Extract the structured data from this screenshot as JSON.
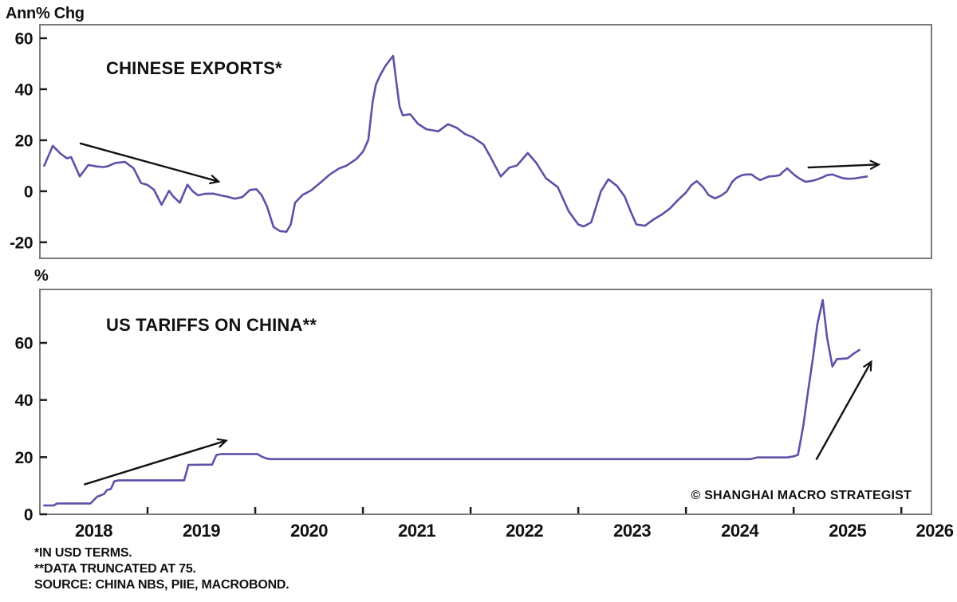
{
  "watermark": "© SHANGHAI MACRO STRATEGIST",
  "footnotes": [
    "*IN USD TERMS.",
    "**DATA TRUNCATED AT 75.",
    "SOURCE: CHINA NBS, PIIE, MACROBOND."
  ],
  "colors": {
    "line": "#5c52a6",
    "axis_frame": "#7a7a7a",
    "tick": "#1a1a1a",
    "text": "#111111",
    "arrow": "#111111",
    "background": "#ffffff"
  },
  "x_axis": {
    "range": [
      2018.0,
      2026.28
    ],
    "tick_years": [
      2019,
      2020,
      2021,
      2022,
      2023,
      2024,
      2025,
      2026
    ],
    "labels": [
      "2018",
      "2019",
      "2020",
      "2021",
      "2022",
      "2023",
      "2024",
      "2025",
      "2026"
    ]
  },
  "chart_data": [
    {
      "type": "line",
      "panel": "top",
      "title": "CHINESE EXPORTS*",
      "y_axis_label": "Ann% Chg",
      "yticks": [
        60,
        40,
        20,
        0,
        -20
      ],
      "ylim": [
        -26.3,
        65.3
      ],
      "grid": false,
      "series": [
        {
          "name": "Chinese exports, annual % change",
          "points": [
            [
              2018.04,
              10.0
            ],
            [
              2018.12,
              17.8
            ],
            [
              2018.19,
              14.8
            ],
            [
              2018.25,
              12.9
            ],
            [
              2018.29,
              13.4
            ],
            [
              2018.37,
              5.8
            ],
            [
              2018.45,
              10.3
            ],
            [
              2018.53,
              9.7
            ],
            [
              2018.59,
              9.5
            ],
            [
              2018.63,
              9.8
            ],
            [
              2018.7,
              11.1
            ],
            [
              2018.79,
              11.5
            ],
            [
              2018.87,
              9.0
            ],
            [
              2018.94,
              3.2
            ],
            [
              2019.0,
              2.5
            ],
            [
              2019.06,
              0.6
            ],
            [
              2019.13,
              -5.3
            ],
            [
              2019.2,
              0.2
            ],
            [
              2019.24,
              -2.1
            ],
            [
              2019.3,
              -4.5
            ],
            [
              2019.37,
              2.6
            ],
            [
              2019.42,
              0.0
            ],
            [
              2019.47,
              -1.6
            ],
            [
              2019.53,
              -1.0
            ],
            [
              2019.61,
              -0.9
            ],
            [
              2019.68,
              -1.6
            ],
            [
              2019.74,
              -2.1
            ],
            [
              2019.81,
              -2.9
            ],
            [
              2019.88,
              -2.3
            ],
            [
              2019.95,
              0.5
            ],
            [
              2020.01,
              0.8
            ],
            [
              2020.06,
              -1.5
            ],
            [
              2020.11,
              -6.0
            ],
            [
              2020.17,
              -14.0
            ],
            [
              2020.23,
              -15.6
            ],
            [
              2020.29,
              -15.9
            ],
            [
              2020.33,
              -13.0
            ],
            [
              2020.37,
              -4.5
            ],
            [
              2020.44,
              -1.4
            ],
            [
              2020.52,
              0.4
            ],
            [
              2020.6,
              3.2
            ],
            [
              2020.69,
              6.5
            ],
            [
              2020.78,
              9.0
            ],
            [
              2020.85,
              10.1
            ],
            [
              2020.94,
              12.7
            ],
            [
              2021.0,
              15.5
            ],
            [
              2021.05,
              20.1
            ],
            [
              2021.09,
              34.9
            ],
            [
              2021.12,
              41.8
            ],
            [
              2021.16,
              45.5
            ],
            [
              2021.21,
              49.2
            ],
            [
              2021.28,
              53.1
            ],
            [
              2021.31,
              43.0
            ],
            [
              2021.34,
              33.3
            ],
            [
              2021.37,
              29.8
            ],
            [
              2021.44,
              30.2
            ],
            [
              2021.51,
              26.5
            ],
            [
              2021.59,
              24.3
            ],
            [
              2021.7,
              23.5
            ],
            [
              2021.79,
              26.3
            ],
            [
              2021.87,
              24.9
            ],
            [
              2021.95,
              22.4
            ],
            [
              2022.02,
              21.2
            ],
            [
              2022.12,
              18.3
            ],
            [
              2022.18,
              13.8
            ],
            [
              2022.28,
              5.8
            ],
            [
              2022.36,
              9.3
            ],
            [
              2022.43,
              10.1
            ],
            [
              2022.53,
              15.0
            ],
            [
              2022.61,
              11.1
            ],
            [
              2022.7,
              5.1
            ],
            [
              2022.81,
              1.6
            ],
            [
              2022.91,
              -7.8
            ],
            [
              2023.0,
              -13.0
            ],
            [
              2023.05,
              -13.8
            ],
            [
              2023.12,
              -12.2
            ],
            [
              2023.21,
              0.0
            ],
            [
              2023.28,
              4.7
            ],
            [
              2023.36,
              2.1
            ],
            [
              2023.43,
              -2.0
            ],
            [
              2023.49,
              -8.3
            ],
            [
              2023.54,
              -13.0
            ],
            [
              2023.62,
              -13.5
            ],
            [
              2023.7,
              -11.0
            ],
            [
              2023.78,
              -9.0
            ],
            [
              2023.85,
              -6.8
            ],
            [
              2023.92,
              -3.7
            ],
            [
              2024.0,
              -0.5
            ],
            [
              2024.05,
              2.4
            ],
            [
              2024.1,
              4.0
            ],
            [
              2024.16,
              1.6
            ],
            [
              2024.21,
              -1.5
            ],
            [
              2024.27,
              -2.8
            ],
            [
              2024.33,
              -1.6
            ],
            [
              2024.38,
              0.0
            ],
            [
              2024.43,
              3.7
            ],
            [
              2024.47,
              5.3
            ],
            [
              2024.52,
              6.3
            ],
            [
              2024.56,
              6.6
            ],
            [
              2024.61,
              6.6
            ],
            [
              2024.65,
              5.3
            ],
            [
              2024.69,
              4.4
            ],
            [
              2024.73,
              5.1
            ],
            [
              2024.77,
              5.8
            ],
            [
              2024.83,
              6.0
            ],
            [
              2024.87,
              6.3
            ],
            [
              2024.9,
              7.6
            ],
            [
              2024.94,
              9.0
            ],
            [
              2024.98,
              7.4
            ],
            [
              2025.01,
              6.3
            ],
            [
              2025.05,
              5.1
            ],
            [
              2025.11,
              3.7
            ],
            [
              2025.16,
              4.0
            ],
            [
              2025.2,
              4.4
            ],
            [
              2025.26,
              5.3
            ],
            [
              2025.31,
              6.3
            ],
            [
              2025.36,
              6.6
            ],
            [
              2025.41,
              5.8
            ],
            [
              2025.46,
              5.1
            ],
            [
              2025.5,
              4.9
            ],
            [
              2025.56,
              5.0
            ],
            [
              2025.61,
              5.3
            ],
            [
              2025.65,
              5.6
            ],
            [
              2025.68,
              5.8
            ]
          ]
        }
      ],
      "arrows": [
        {
          "from": [
            2018.37,
            18.8
          ],
          "to": [
            2019.66,
            3.8
          ]
        },
        {
          "from": [
            2025.13,
            9.3
          ],
          "to": [
            2025.79,
            10.5
          ]
        }
      ]
    },
    {
      "type": "line",
      "panel": "bottom",
      "title": "US TARIFFS ON CHINA**",
      "y_axis_label": "%",
      "yticks": [
        60,
        40,
        20,
        0
      ],
      "ylim": [
        0,
        78.7
      ],
      "grid": false,
      "series": [
        {
          "name": "US tariffs on China, %",
          "points": [
            [
              2018.04,
              3.1
            ],
            [
              2018.13,
              3.1
            ],
            [
              2018.16,
              3.8
            ],
            [
              2018.47,
              3.8
            ],
            [
              2018.53,
              6.1
            ],
            [
              2018.57,
              6.7
            ],
            [
              2018.6,
              7.2
            ],
            [
              2018.62,
              8.4
            ],
            [
              2018.66,
              8.9
            ],
            [
              2018.69,
              11.5
            ],
            [
              2018.73,
              11.9
            ],
            [
              2019.34,
              11.9
            ],
            [
              2019.38,
              17.3
            ],
            [
              2019.6,
              17.4
            ],
            [
              2019.64,
              20.8
            ],
            [
              2019.69,
              21.1
            ],
            [
              2020.02,
              21.1
            ],
            [
              2020.06,
              20.2
            ],
            [
              2020.1,
              19.6
            ],
            [
              2020.14,
              19.3
            ],
            [
              2024.6,
              19.3
            ],
            [
              2024.66,
              19.9
            ],
            [
              2024.94,
              19.9
            ],
            [
              2025.0,
              20.3
            ],
            [
              2025.04,
              20.8
            ],
            [
              2025.09,
              31.0
            ],
            [
              2025.13,
              42.0
            ],
            [
              2025.18,
              55.0
            ],
            [
              2025.22,
              66.5
            ],
            [
              2025.27,
              75.0
            ],
            [
              2025.31,
              62.0
            ],
            [
              2025.36,
              51.7
            ],
            [
              2025.4,
              54.3
            ],
            [
              2025.5,
              54.6
            ],
            [
              2025.56,
              56.3
            ],
            [
              2025.61,
              57.5
            ]
          ]
        }
      ],
      "arrows": [
        {
          "from": [
            2018.41,
            10.4
          ],
          "to": [
            2019.73,
            25.8
          ]
        },
        {
          "from": [
            2025.21,
            19.1
          ],
          "to": [
            2025.72,
            53.4
          ]
        }
      ]
    }
  ]
}
